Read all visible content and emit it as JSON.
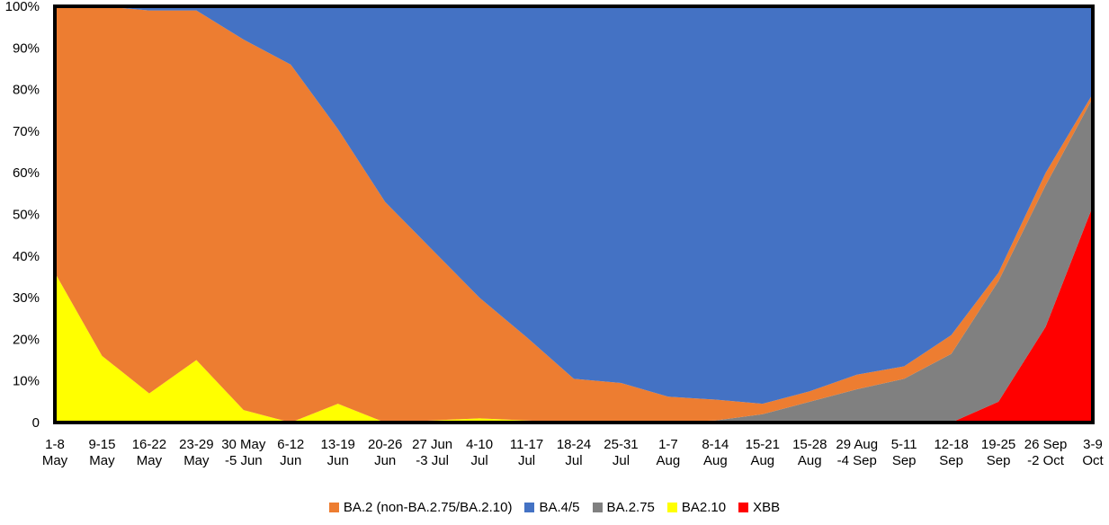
{
  "chart_data": {
    "type": "area",
    "stacked": true,
    "normalized": true,
    "title": "",
    "xlabel": "",
    "ylabel": "",
    "ylim": [
      0,
      100
    ],
    "y_ticks": [
      "0",
      "10%",
      "20%",
      "30%",
      "40%",
      "50%",
      "60%",
      "70%",
      "80%",
      "90%",
      "100%"
    ],
    "categories": [
      [
        "1-8",
        "May"
      ],
      [
        "9-15",
        "May"
      ],
      [
        "16-22",
        "May"
      ],
      [
        "23-29",
        "May"
      ],
      [
        "30 May",
        "-5 Jun"
      ],
      [
        "6-12",
        "Jun"
      ],
      [
        "13-19",
        "Jun"
      ],
      [
        "20-26",
        "Jun"
      ],
      [
        "27 Jun",
        "-3 Jul"
      ],
      [
        "4-10",
        "Jul"
      ],
      [
        "11-17",
        "Jul"
      ],
      [
        "18-24",
        "Jul"
      ],
      [
        "25-31",
        "Jul"
      ],
      [
        "1-7",
        "Aug"
      ],
      [
        "8-14",
        "Aug"
      ],
      [
        "15-21",
        "Aug"
      ],
      [
        "15-28",
        "Aug"
      ],
      [
        "29 Aug",
        "-4 Sep"
      ],
      [
        "5-11",
        "Sep"
      ],
      [
        "12-18",
        "Sep"
      ],
      [
        "19-25",
        "Sep"
      ],
      [
        "26 Sep",
        "-2 Oct"
      ],
      [
        "3-9",
        "Oct"
      ]
    ],
    "series": [
      {
        "name": "XBB",
        "color": "#ff0000",
        "values": [
          0,
          0,
          0,
          0,
          0,
          0,
          0,
          0,
          0,
          0,
          0,
          0,
          0,
          0,
          0,
          0,
          0,
          0,
          0,
          0,
          5,
          23,
          52
        ]
      },
      {
        "name": "BA2.10",
        "color": "#ffff00",
        "values": [
          36,
          16,
          7,
          15,
          3,
          0,
          4.5,
          0,
          0.5,
          1,
          0.5,
          0,
          0,
          0,
          0,
          0,
          0,
          0,
          0,
          0,
          0,
          0,
          0
        ]
      },
      {
        "name": "BA.2.75",
        "color": "#808080",
        "values": [
          0,
          0,
          0,
          0,
          0,
          0,
          0,
          0,
          0,
          0,
          0,
          0,
          0,
          0.2,
          0.5,
          2,
          5,
          8,
          10.5,
          16.5,
          29,
          34,
          26
        ]
      },
      {
        "name": "BA.2 (non-BA.2.75/BA.2.10)",
        "color": "#ed7d31",
        "values": [
          64,
          84,
          92,
          84,
          89,
          86,
          66,
          53,
          41,
          29,
          20,
          10.5,
          9.5,
          6,
          5,
          2.5,
          2.5,
          3.5,
          3,
          4.5,
          2,
          3,
          1
        ]
      },
      {
        "name": "BA.4/5",
        "color": "#4472c4",
        "values": [
          0,
          0,
          1,
          1,
          8,
          14,
          29.5,
          47,
          58.5,
          70,
          79.5,
          89.5,
          90.5,
          93.8,
          94.5,
          95.5,
          92.5,
          88.5,
          86.5,
          79,
          64,
          40,
          21
        ]
      }
    ],
    "legend_order": [
      "BA.2 (non-BA.2.75/BA.2.10)",
      "BA.4/5",
      "BA.2.75",
      "BA2.10",
      "XBB"
    ],
    "legend_position": "bottom"
  }
}
